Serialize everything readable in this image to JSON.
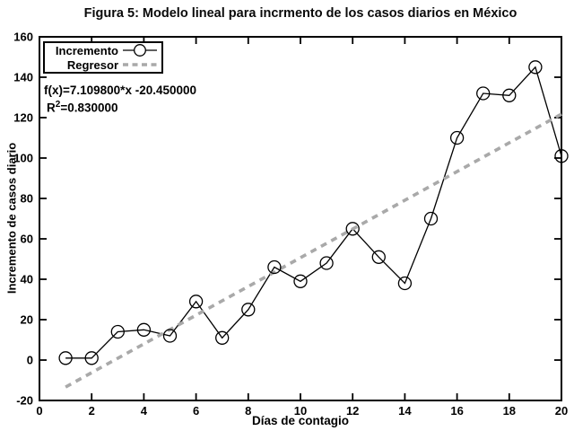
{
  "chart_data": {
    "type": "line",
    "title": "Figura 5: Modelo lineal para incrmento de los casos diarios en México",
    "xlabel": "Días de contagio",
    "ylabel": "Incremento de casos diario",
    "xlim": [
      0,
      20
    ],
    "ylim": [
      -20,
      160
    ],
    "x_ticks": [
      0,
      2,
      4,
      6,
      8,
      10,
      12,
      14,
      16,
      18,
      20
    ],
    "y_ticks": [
      -20,
      0,
      20,
      40,
      60,
      80,
      100,
      120,
      140,
      160
    ],
    "grid": false,
    "legend_position": "top-left",
    "series": [
      {
        "name": "Incremento",
        "type": "line",
        "marker": "open-circle",
        "color": "#000000",
        "x": [
          1,
          2,
          3,
          4,
          5,
          6,
          7,
          8,
          9,
          10,
          11,
          12,
          13,
          14,
          15,
          16,
          17,
          18,
          19,
          20
        ],
        "y": [
          1,
          1,
          14,
          15,
          12,
          29,
          11,
          25,
          46,
          39,
          48,
          65,
          51,
          38,
          70,
          110,
          132,
          131,
          145,
          101
        ]
      },
      {
        "name": "Regresor",
        "type": "regression-line",
        "style": "dashed",
        "color": "#a9a9a9",
        "slope": 7.1098,
        "intercept": -20.45,
        "x_range": [
          1,
          20
        ]
      }
    ],
    "annotation": {
      "equation": "f(x)=7.109800*x -20.450000",
      "r2_base": "R",
      "r2_sup": "2",
      "r2_rest": "=0.830000"
    }
  }
}
